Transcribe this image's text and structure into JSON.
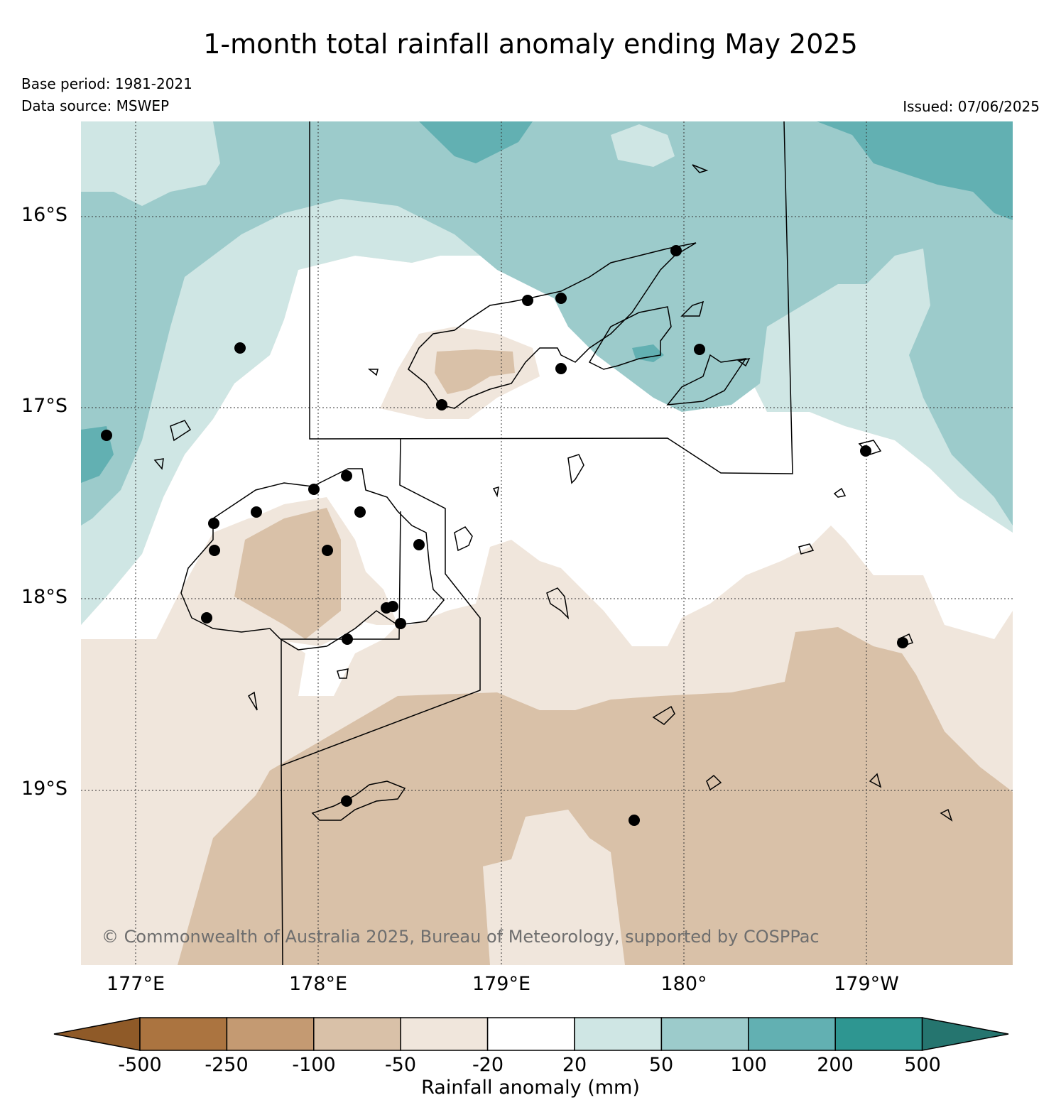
{
  "title": "1-month total rainfall anomaly ending May 2025",
  "base_period": "Base period: 1981-2021",
  "data_source": "Data source: MSWEP",
  "issued": "Issued: 07/06/2025",
  "copyright": "© Commonwealth of Australia 2025, Bureau of Meteorology, supported by COSPPac",
  "lat_labels": [
    "16°S",
    "17°S",
    "18°S",
    "19°S"
  ],
  "lon_labels": [
    "177°E",
    "178°E",
    "179°E",
    "180°",
    "179°W"
  ],
  "colorbar": {
    "title": "Rainfall anomaly (mm)",
    "ticks": [
      "-500",
      "-250",
      "-100",
      "-50",
      "-20",
      "20",
      "50",
      "100",
      "200",
      "500"
    ],
    "colors": [
      "#8f5a28",
      "#ab7440",
      "#c49a72",
      "#d9c1a8",
      "#f0e6dc",
      "#ffffff",
      "#cfe6e4",
      "#9ccbcb",
      "#62b0b2",
      "#2e9691",
      "#25756f"
    ]
  },
  "colors": {
    "dry_50": "#d9c1a8",
    "dry_20": "#f0e6dc",
    "neutral": "#ffffff",
    "wet_20": "#cfe6e4",
    "wet_50": "#9ccbcb",
    "wet_100": "#62b0b2"
  }
}
